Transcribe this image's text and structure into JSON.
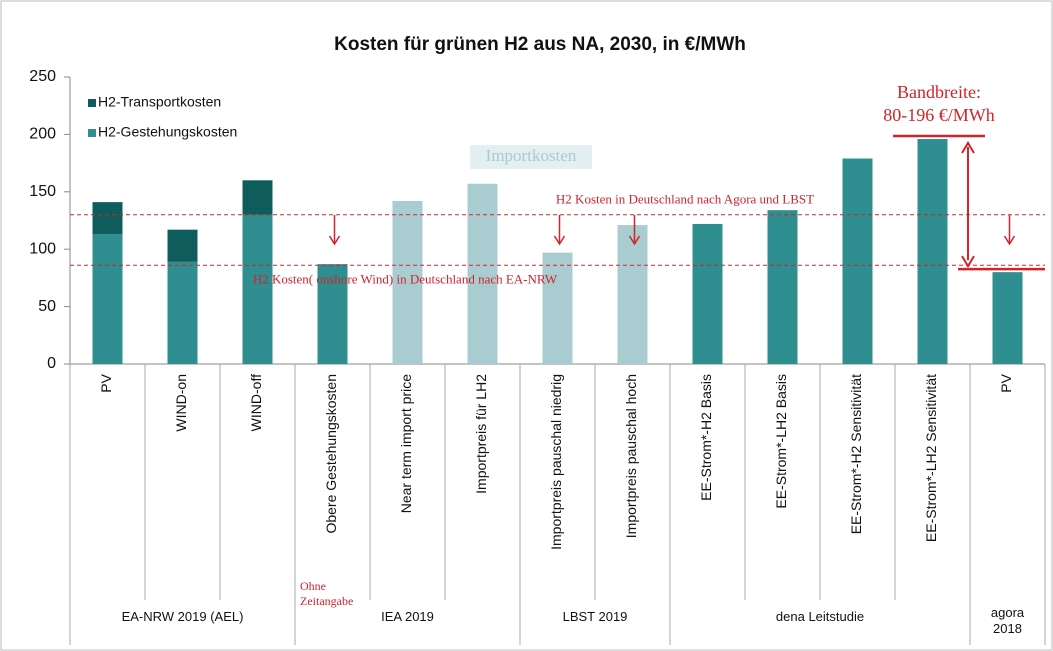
{
  "chart_data": {
    "type": "bar",
    "stacked": true,
    "title": "Kosten für grünen H2 aus NA, 2030, in €/MWh",
    "categories": [
      "PV",
      "WIND-on",
      "WIND-off",
      "Obere Gestehungskosten",
      "Near term import price",
      "Importpreis für LH2",
      "Importpreis pauschal niedrig",
      "Importpreis pauschal hoch",
      "EE-Strom*-H2 Basis",
      "EE-Strom*-LH2  Basis",
      "EE-Strom*-H2 Sensitivität",
      "EE-Strom*-LH2 Sensitivität",
      "PV"
    ],
    "groups": [
      {
        "label": "EA-NRW 2019 (AEL)",
        "size": 3
      },
      {
        "label": "IEA 2019",
        "size": 3
      },
      {
        "label": "LBST 2019",
        "size": 2
      },
      {
        "label": "dena Leitstudie",
        "size": 4
      },
      {
        "label": "agora 2018",
        "size": 1
      }
    ],
    "series": [
      {
        "name": "H2-Gestehungskosten",
        "color": "#2f8e8f",
        "colors": [
          "#2f8e8f",
          "#2f8e8f",
          "#2f8e8f",
          "#2f8e8f",
          "#a8ccd0",
          "#a8ccd0",
          "#a8ccd0",
          "#a8ccd0",
          "#2f8e8f",
          "#2f8e8f",
          "#2f8e8f",
          "#2f8e8f",
          "#2f8e8f"
        ],
        "values": [
          113,
          89,
          130,
          87,
          142,
          157,
          97,
          121,
          122,
          134,
          179,
          196,
          80
        ]
      },
      {
        "name": "H2-Transportkosten",
        "color": "#0f5c5c",
        "values": [
          28,
          28,
          30,
          null,
          null,
          null,
          null,
          null,
          null,
          null,
          null,
          null,
          null
        ]
      }
    ],
    "ylim": [
      0,
      250
    ],
    "yticks": [
      0,
      50,
      100,
      150,
      200,
      250
    ],
    "reference_lines": [
      {
        "value": 130,
        "label": "H2 Kosten in Deutschland nach Agora und LBST"
      },
      {
        "value": 86,
        "label": "H2 Kosten( onshore Wind) in Deutschland nach EA-NRW"
      }
    ],
    "range": [
      80,
      196
    ],
    "range_label": [
      "Bandbreite:",
      "80-196 €/MWh"
    ],
    "section_label": "Importkosten",
    "note": [
      "Ohne",
      "Zeitangabe"
    ],
    "legend": "upper left"
  }
}
